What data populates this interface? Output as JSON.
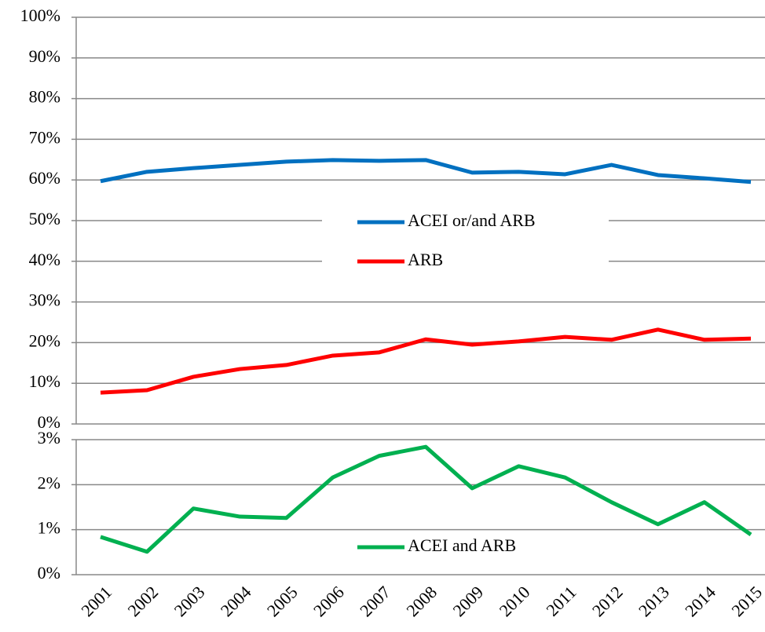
{
  "chart_data": [
    {
      "type": "line",
      "ylim": [
        0,
        100
      ],
      "yticks": [
        {
          "value": 0,
          "label": "0%"
        },
        {
          "value": 10,
          "label": "10%"
        },
        {
          "value": 20,
          "label": "20%"
        },
        {
          "value": 30,
          "label": "30%"
        },
        {
          "value": 40,
          "label": "40%"
        },
        {
          "value": 50,
          "label": "50%"
        },
        {
          "value": 60,
          "label": "60%"
        },
        {
          "value": 70,
          "label": "70%"
        },
        {
          "value": 80,
          "label": "80%"
        },
        {
          "value": 90,
          "label": "90%"
        },
        {
          "value": 100,
          "label": "100%"
        }
      ],
      "grid": true,
      "series": [
        {
          "name": "ACEI or/and ARB",
          "color": "#0070c0",
          "values": [
            59.7,
            62.0,
            62.9,
            63.7,
            64.5,
            64.9,
            64.7,
            64.9,
            61.8,
            62.0,
            61.4,
            63.7,
            61.2,
            60.4,
            59.5
          ]
        },
        {
          "name": "ARB",
          "color": "#ff0000",
          "values": [
            7.7,
            8.3,
            11.6,
            13.5,
            14.5,
            16.8,
            17.6,
            20.8,
            19.5,
            20.3,
            21.4,
            20.7,
            23.2,
            20.7,
            21.0
          ]
        }
      ]
    },
    {
      "type": "line",
      "categories": [
        "2001",
        "2002",
        "2003",
        "2004",
        "2005",
        "2006",
        "2007",
        "2008",
        "2009",
        "2010",
        "2011",
        "2012",
        "2013",
        "2014",
        "2015"
      ],
      "ylim": [
        0,
        3
      ],
      "yticks": [
        {
          "value": 0,
          "label": "0%"
        },
        {
          "value": 1,
          "label": "1%"
        },
        {
          "value": 2,
          "label": "2%"
        },
        {
          "value": 3,
          "label": "3%"
        }
      ],
      "grid": true,
      "series": [
        {
          "name": "ACEI and ARB",
          "color": "#00b050",
          "values": [
            0.84,
            0.51,
            1.47,
            1.29,
            1.26,
            2.16,
            2.64,
            2.84,
            1.92,
            2.41,
            2.16,
            1.61,
            1.12,
            1.61,
            0.89
          ]
        }
      ]
    }
  ]
}
